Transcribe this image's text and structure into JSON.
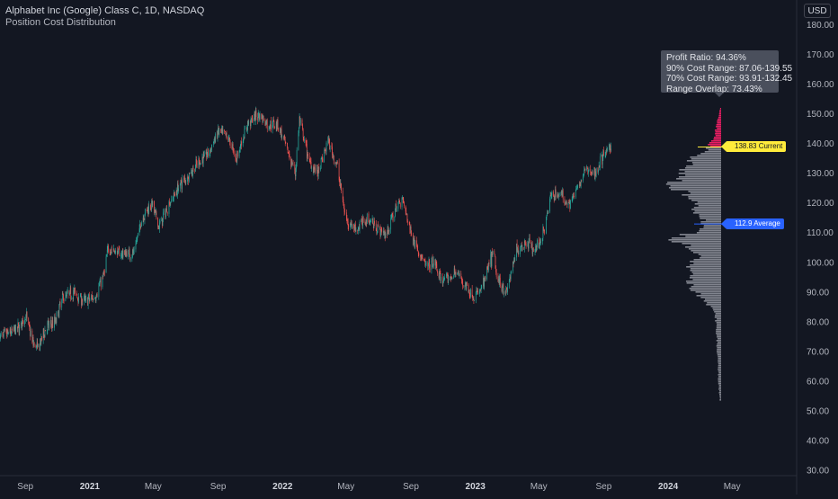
{
  "header": {
    "title": "Alphabet Inc (Google) Class C, 1D, NASDAQ",
    "subtitle": "Position Cost Distribution",
    "currency": "USD"
  },
  "stats": {
    "profit_ratio": "Profit Ratio: 94.36%",
    "cost_range_90": "90% Cost Range: 87.06-139.55",
    "cost_range_70": "70% Cost Range: 93.91-132.45",
    "range_overlap": "Range Overlap: 73.43%"
  },
  "markers": {
    "current_label": "138.83 Current",
    "current_value": 138.83,
    "average_label": "112.9 Average",
    "average_value": 112.9
  },
  "colors": {
    "background": "#131722",
    "up": "#26a69a",
    "down": "#ef5350",
    "profile_loss": "#e91e63",
    "profile_profit": "#9598a1",
    "current": "#ffeb3b",
    "average": "#2962ff"
  },
  "chart_data": {
    "type": "candlestick",
    "title": "Alphabet Inc (Google) Class C, 1D, NASDAQ",
    "subtitle": "Position Cost Distribution",
    "ylim": [
      30,
      180
    ],
    "y_ticks": [
      30,
      40,
      50,
      60,
      70,
      80,
      90,
      100,
      110,
      120,
      130,
      140,
      150,
      160,
      170,
      180
    ],
    "y_tick_labels": [
      "30.00",
      "40.00",
      "50.00",
      "60.00",
      "70.00",
      "80.00",
      "90.00",
      "100.00",
      "110.00",
      "120.00",
      "130.00",
      "140.00",
      "150.00",
      "160.00",
      "170.00",
      "180.00"
    ],
    "x_range": [
      "2020-07-15",
      "2024-07-01"
    ],
    "x_ticks": [
      {
        "date": "2020-09-01",
        "label": "Sep",
        "bold": false
      },
      {
        "date": "2021-01-01",
        "label": "2021",
        "bold": true
      },
      {
        "date": "2021-05-01",
        "label": "May",
        "bold": false
      },
      {
        "date": "2021-09-01",
        "label": "Sep",
        "bold": false
      },
      {
        "date": "2022-01-01",
        "label": "2022",
        "bold": true
      },
      {
        "date": "2022-05-01",
        "label": "May",
        "bold": false
      },
      {
        "date": "2022-09-01",
        "label": "Sep",
        "bold": false
      },
      {
        "date": "2023-01-01",
        "label": "2023",
        "bold": true
      },
      {
        "date": "2023-05-01",
        "label": "May",
        "bold": false
      },
      {
        "date": "2023-09-01",
        "label": "Sep",
        "bold": false
      },
      {
        "date": "2024-01-01",
        "label": "2024",
        "bold": true
      },
      {
        "date": "2024-05-01",
        "label": "May",
        "bold": false
      }
    ],
    "price_path": [
      [
        "2020-07-15",
        75
      ],
      [
        "2020-08-01",
        76
      ],
      [
        "2020-08-20",
        78
      ],
      [
        "2020-09-02",
        82
      ],
      [
        "2020-09-15",
        73
      ],
      [
        "2020-09-25",
        71
      ],
      [
        "2020-10-10",
        78
      ],
      [
        "2020-10-28",
        80
      ],
      [
        "2020-11-10",
        88
      ],
      [
        "2020-12-01",
        90
      ],
      [
        "2020-12-20",
        87
      ],
      [
        "2021-01-10",
        88
      ],
      [
        "2021-01-28",
        96
      ],
      [
        "2021-02-05",
        105
      ],
      [
        "2021-02-25",
        103
      ],
      [
        "2021-03-10",
        103
      ],
      [
        "2021-03-25",
        103
      ],
      [
        "2021-04-10",
        115
      ],
      [
        "2021-04-28",
        120
      ],
      [
        "2021-05-12",
        112
      ],
      [
        "2021-06-01",
        120
      ],
      [
        "2021-06-20",
        126
      ],
      [
        "2021-07-10",
        130
      ],
      [
        "2021-07-28",
        134
      ],
      [
        "2021-08-15",
        137
      ],
      [
        "2021-09-01",
        144
      ],
      [
        "2021-09-20",
        142
      ],
      [
        "2021-10-05",
        135
      ],
      [
        "2021-10-28",
        147
      ],
      [
        "2021-11-18",
        150
      ],
      [
        "2021-12-05",
        146
      ],
      [
        "2021-12-22",
        147
      ],
      [
        "2022-01-05",
        140
      ],
      [
        "2022-01-25",
        130
      ],
      [
        "2022-02-02",
        148
      ],
      [
        "2022-02-20",
        134
      ],
      [
        "2022-03-10",
        130
      ],
      [
        "2022-03-28",
        141
      ],
      [
        "2022-04-15",
        132
      ],
      [
        "2022-04-30",
        115
      ],
      [
        "2022-05-20",
        111
      ],
      [
        "2022-06-10",
        115
      ],
      [
        "2022-06-28",
        112
      ],
      [
        "2022-07-15",
        109
      ],
      [
        "2022-08-01",
        117
      ],
      [
        "2022-08-15",
        122
      ],
      [
        "2022-09-01",
        110
      ],
      [
        "2022-09-30",
        98
      ],
      [
        "2022-10-15",
        100
      ],
      [
        "2022-10-28",
        94
      ],
      [
        "2022-11-10",
        94
      ],
      [
        "2022-11-25",
        97
      ],
      [
        "2022-12-10",
        93
      ],
      [
        "2022-12-30",
        88
      ],
      [
        "2023-01-15",
        92
      ],
      [
        "2023-02-05",
        104
      ],
      [
        "2023-02-10",
        95
      ],
      [
        "2023-03-01",
        90
      ],
      [
        "2023-03-20",
        104
      ],
      [
        "2023-04-10",
        107
      ],
      [
        "2023-04-25",
        104
      ],
      [
        "2023-05-10",
        110
      ],
      [
        "2023-05-25",
        123
      ],
      [
        "2023-06-10",
        123
      ],
      [
        "2023-06-28",
        120
      ],
      [
        "2023-07-15",
        125
      ],
      [
        "2023-07-28",
        131
      ],
      [
        "2023-08-15",
        130
      ],
      [
        "2023-09-01",
        136
      ],
      [
        "2023-09-15",
        139
      ]
    ],
    "profile": [
      {
        "price": 152,
        "volume": 0.02,
        "in_profit": false
      },
      {
        "price": 149,
        "volume": 0.05,
        "in_profit": false
      },
      {
        "price": 146,
        "volume": 0.08,
        "in_profit": false
      },
      {
        "price": 143,
        "volume": 0.1,
        "in_profit": false
      },
      {
        "price": 140,
        "volume": 0.18,
        "in_profit": false
      },
      {
        "price": 138,
        "volume": 0.22,
        "in_profit": true
      },
      {
        "price": 135,
        "volume": 0.48,
        "in_profit": true
      },
      {
        "price": 132,
        "volume": 0.58,
        "in_profit": true
      },
      {
        "price": 129,
        "volume": 0.62,
        "in_profit": true
      },
      {
        "price": 126,
        "volume": 0.8,
        "in_profit": true
      },
      {
        "price": 123,
        "volume": 0.55,
        "in_profit": true
      },
      {
        "price": 120,
        "volume": 0.45,
        "in_profit": true
      },
      {
        "price": 117,
        "volume": 0.38,
        "in_profit": true
      },
      {
        "price": 114,
        "volume": 0.28,
        "in_profit": true
      },
      {
        "price": 111,
        "volume": 0.3,
        "in_profit": true
      },
      {
        "price": 108,
        "volume": 0.85,
        "in_profit": true
      },
      {
        "price": 105,
        "volume": 0.45,
        "in_profit": true
      },
      {
        "price": 102,
        "volume": 0.38,
        "in_profit": true
      },
      {
        "price": 99,
        "volume": 0.52,
        "in_profit": true
      },
      {
        "price": 96,
        "volume": 0.55,
        "in_profit": true
      },
      {
        "price": 93,
        "volume": 0.45,
        "in_profit": true
      },
      {
        "price": 90,
        "volume": 0.4,
        "in_profit": true
      },
      {
        "price": 87,
        "volume": 0.25,
        "in_profit": true
      },
      {
        "price": 84,
        "volume": 0.1,
        "in_profit": true
      },
      {
        "price": 80,
        "volume": 0.08,
        "in_profit": true
      },
      {
        "price": 76,
        "volume": 0.07,
        "in_profit": true
      },
      {
        "price": 72,
        "volume": 0.07,
        "in_profit": true
      },
      {
        "price": 68,
        "volume": 0.05,
        "in_profit": true
      },
      {
        "price": 64,
        "volume": 0.05,
        "in_profit": true
      },
      {
        "price": 60,
        "volume": 0.04,
        "in_profit": true
      },
      {
        "price": 56,
        "volume": 0.03,
        "in_profit": true
      },
      {
        "price": 54,
        "volume": 0.02,
        "in_profit": true
      }
    ]
  }
}
